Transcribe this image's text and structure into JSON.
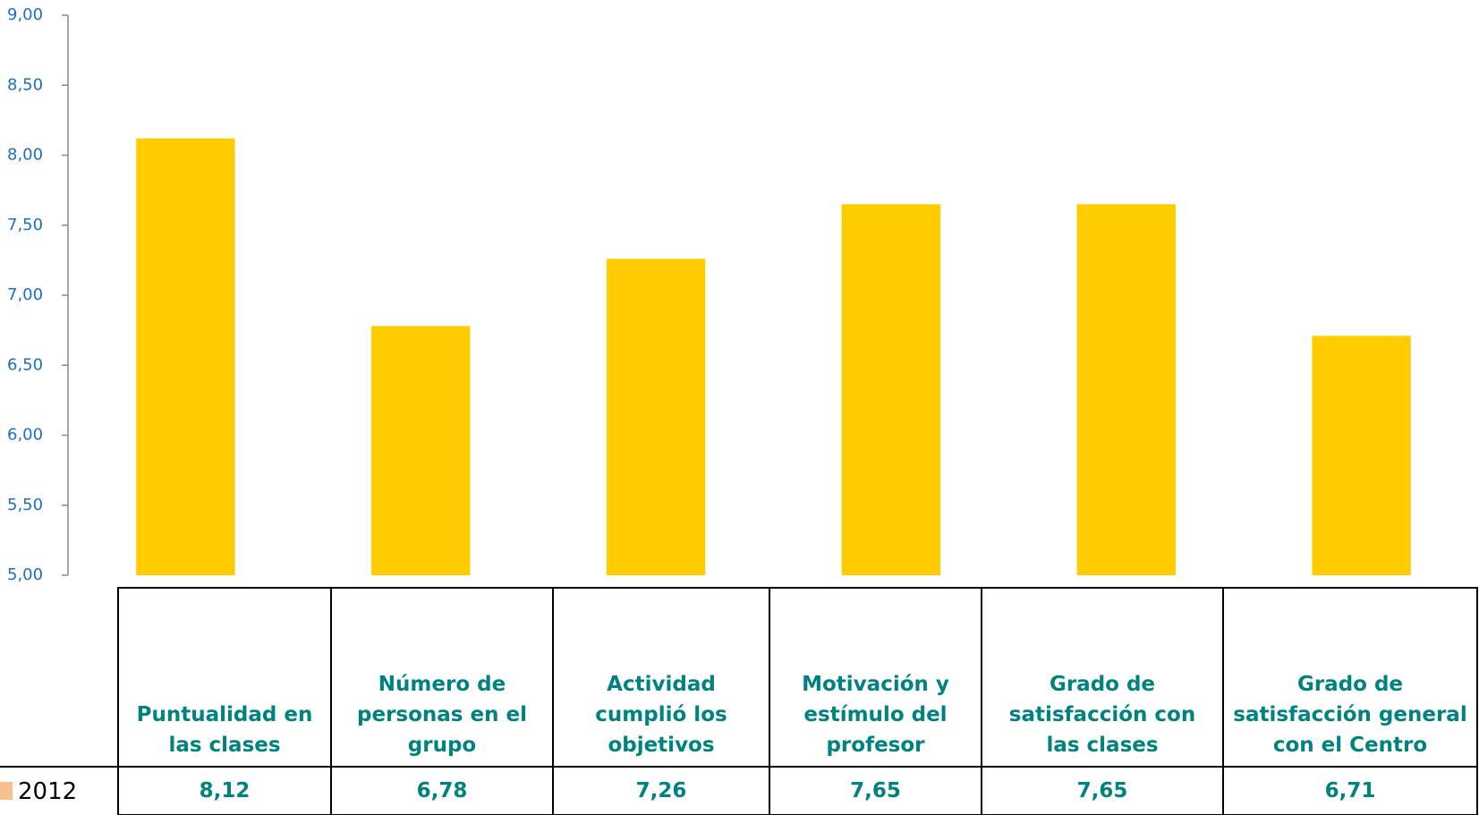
{
  "chart_data": {
    "type": "bar",
    "categories": [
      "Puntualidad en las clases",
      "Número de personas en el grupo",
      "Actividad cumplió  los objetivos",
      "Motivación y estímulo del profesor",
      "Grado de satisfacción con las clases",
      "Grado de satisfacción general con el Centro"
    ],
    "series": [
      {
        "name": "2012",
        "color": "#ffcc00",
        "values": [
          8.12,
          6.78,
          7.26,
          7.65,
          7.65,
          6.71
        ],
        "value_labels": [
          "8,12",
          "6,78",
          "7,26",
          "7,65",
          "7,65",
          "6,71"
        ]
      }
    ],
    "legend_color": "#f9c08f",
    "ylim": [
      5,
      9
    ],
    "yticks": [
      {
        "value": 5,
        "label": "5,00"
      },
      {
        "value": 5.5,
        "label": "5,50"
      },
      {
        "value": 6,
        "label": "6,00"
      },
      {
        "value": 6.5,
        "label": "6,50"
      },
      {
        "value": 7,
        "label": "7,00"
      },
      {
        "value": 7.5,
        "label": "7,50"
      },
      {
        "value": 8,
        "label": "8,00"
      },
      {
        "value": 8.5,
        "label": "8,50"
      },
      {
        "value": 9,
        "label": "9,00"
      }
    ]
  }
}
